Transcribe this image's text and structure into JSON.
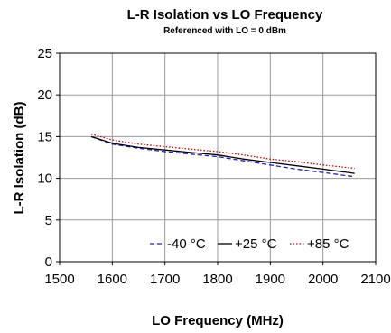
{
  "chart_data": {
    "type": "line",
    "title": "L-R Isolation vs LO Frequency",
    "subtitle": "Referenced with LO = 0 dBm",
    "xlabel": "LO Frequency (MHz)",
    "ylabel": "L-R Isolation (dB)",
    "xlim": [
      1500,
      2100
    ],
    "ylim": [
      0,
      25
    ],
    "x_ticks": [
      "1500",
      "1600",
      "1700",
      "1800",
      "1900",
      "2000",
      "2100"
    ],
    "y_ticks": [
      "0",
      "5",
      "10",
      "15",
      "20",
      "25"
    ],
    "grid": true,
    "legend_position": "bottom-right",
    "x": [
      1560,
      1600,
      1650,
      1700,
      1750,
      1800,
      1850,
      1900,
      1950,
      2000,
      2060
    ],
    "series": [
      {
        "name": "-40 °C",
        "color": "#1f1fbf",
        "dash": "dashed",
        "values": [
          15.0,
          14.1,
          13.6,
          13.2,
          12.9,
          12.6,
          12.1,
          11.6,
          11.1,
          10.7,
          10.2
        ]
      },
      {
        "name": "+25 °C",
        "color": "#000000",
        "dash": "solid",
        "values": [
          15.0,
          14.2,
          13.7,
          13.4,
          13.1,
          12.8,
          12.3,
          11.9,
          11.5,
          11.1,
          10.6
        ]
      },
      {
        "name": "+85 °C",
        "color": "#c00000",
        "dash": "dotted",
        "values": [
          15.3,
          14.6,
          14.1,
          13.8,
          13.5,
          13.2,
          12.8,
          12.3,
          12.0,
          11.6,
          11.2
        ]
      }
    ]
  }
}
